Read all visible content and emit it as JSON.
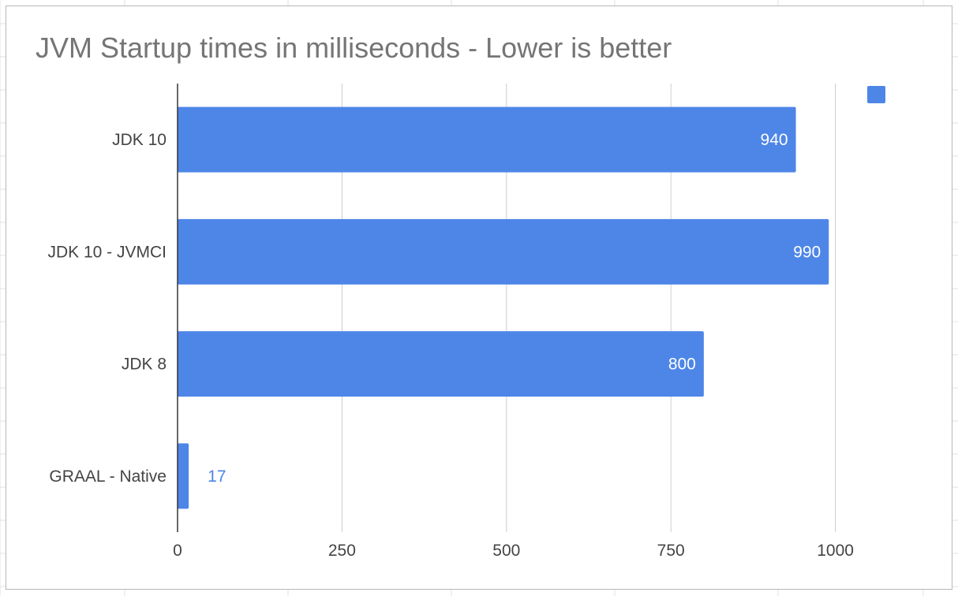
{
  "chart_data": {
    "type": "bar",
    "orientation": "horizontal",
    "title": "JVM Startup times in milliseconds - Lower is better",
    "categories": [
      "JDK 10",
      "JDK 10 - JVMCI",
      "JDK 8",
      "GRAAL - Native"
    ],
    "series": [
      {
        "values": [
          940,
          990,
          800,
          17
        ],
        "color": "#4e86e8"
      }
    ],
    "data_labels": [
      "940",
      "990",
      "800",
      "17"
    ],
    "xlim": [
      0,
      1100
    ],
    "x_ticks": [
      0,
      250,
      500,
      750,
      1000
    ],
    "x_tick_labels": [
      "0",
      "250",
      "500",
      "750",
      "1000"
    ],
    "grid": true,
    "legend": "top-right",
    "colors": {
      "bar": "#4e86e8",
      "outside_label": "#4a84e8",
      "grid": "#cccccc",
      "axis": "#333333",
      "title": "#757575"
    }
  }
}
